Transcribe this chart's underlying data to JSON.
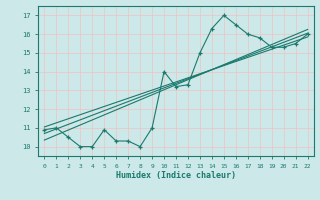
{
  "xlabel": "Humidex (Indice chaleur)",
  "ylabel": "",
  "bg_color": "#cce8e8",
  "line_color": "#1a7a6e",
  "grid_color": "#e8c8c8",
  "x_data": [
    0,
    1,
    2,
    3,
    4,
    5,
    6,
    7,
    8,
    9,
    10,
    11,
    12,
    13,
    14,
    15,
    16,
    17,
    18,
    19,
    20,
    21,
    22
  ],
  "y_data": [
    10.9,
    11.0,
    10.5,
    10.0,
    10.0,
    10.9,
    10.3,
    10.3,
    10.0,
    11.0,
    14.0,
    13.2,
    13.3,
    15.0,
    16.3,
    17.0,
    16.5,
    16.0,
    15.8,
    15.3,
    15.3,
    15.5,
    16.0
  ],
  "reg_lines": [
    {
      "x0": 0,
      "y0": 11.05,
      "x1": 22,
      "y1": 15.85
    },
    {
      "x0": 0,
      "y0": 10.7,
      "x1": 22,
      "y1": 16.05
    },
    {
      "x0": 0,
      "y0": 10.35,
      "x1": 22,
      "y1": 16.25
    }
  ],
  "xlim": [
    -0.5,
    22.5
  ],
  "ylim": [
    9.5,
    17.5
  ],
  "xticks": [
    0,
    1,
    2,
    3,
    4,
    5,
    6,
    7,
    8,
    9,
    10,
    11,
    12,
    13,
    14,
    15,
    16,
    17,
    18,
    19,
    20,
    21,
    22
  ],
  "yticks": [
    10,
    11,
    12,
    13,
    14,
    15,
    16,
    17
  ]
}
